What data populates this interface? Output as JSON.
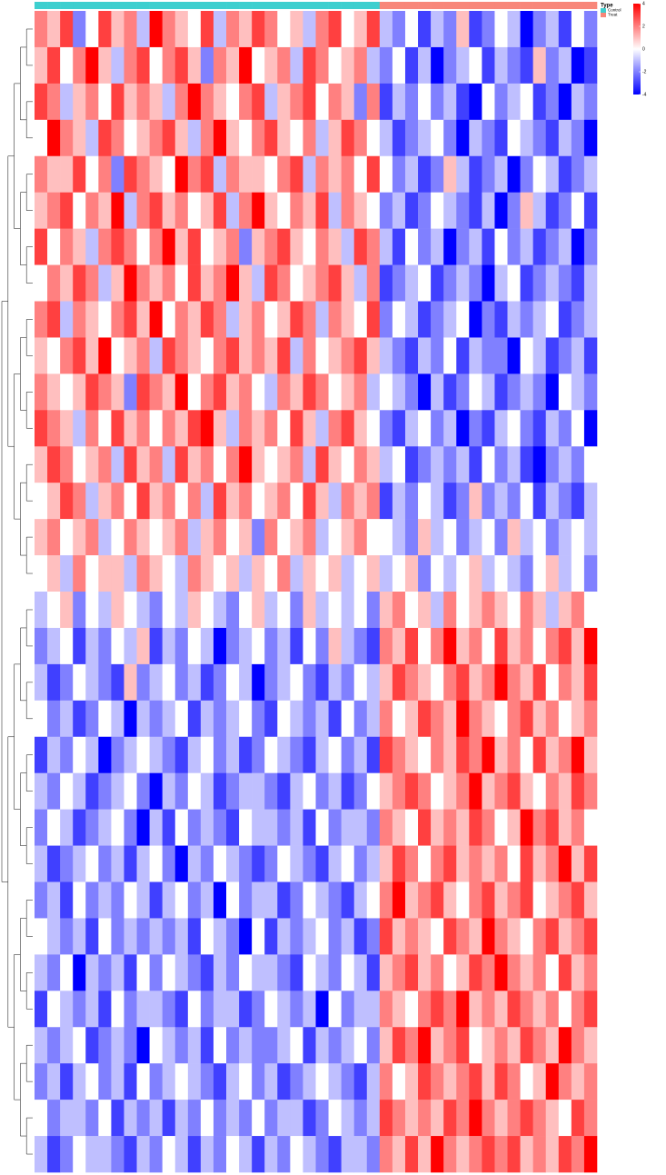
{
  "chart_data": {
    "type": "heatmap",
    "legend_title": "Type",
    "types": [
      "Control",
      "Treat"
    ],
    "type_colors": [
      "#3ecfcf",
      "#f8877a"
    ],
    "column_type": [
      0,
      0,
      0,
      0,
      0,
      0,
      0,
      0,
      0,
      0,
      0,
      0,
      0,
      0,
      0,
      0,
      0,
      0,
      0,
      0,
      0,
      0,
      0,
      0,
      0,
      0,
      0,
      1,
      1,
      1,
      1,
      1,
      1,
      1,
      1,
      1,
      1,
      1,
      1,
      1,
      1,
      1,
      1,
      1
    ],
    "zlim": [
      -4,
      4
    ],
    "zticks": [
      4,
      2,
      0,
      -2,
      -4
    ],
    "colors": [
      "#0000ff",
      "#ffffff",
      "#ff0000"
    ],
    "values": [
      [
        2,
        1,
        3,
        -2,
        0,
        3,
        1,
        2,
        -1,
        4,
        2,
        1,
        0,
        3,
        -1,
        2,
        1,
        3,
        2,
        0,
        1,
        -1,
        2,
        3,
        0,
        1,
        3,
        -1,
        -2,
        0,
        -3,
        -1,
        -2,
        1,
        -3,
        -2,
        0,
        -1,
        -4,
        -2,
        -1,
        -3,
        0,
        -2
      ],
      [
        1,
        3,
        0,
        2,
        4,
        1,
        -1,
        2,
        3,
        0,
        2,
        3,
        1,
        -2,
        2,
        1,
        4,
        0,
        1,
        2,
        -1,
        3,
        2,
        0,
        1,
        2,
        -1,
        -2,
        0,
        -3,
        -1,
        -4,
        -2,
        -1,
        0,
        -3,
        -1,
        -2,
        -3,
        1,
        -2,
        -1,
        -4,
        -3
      ],
      [
        3,
        2,
        -1,
        1,
        2,
        0,
        3,
        1,
        2,
        1,
        -1,
        2,
        4,
        2,
        1,
        0,
        2,
        3,
        -1,
        1,
        2,
        3,
        0,
        2,
        1,
        -2,
        2,
        -3,
        -1,
        -2,
        0,
        -2,
        -1,
        -3,
        -4,
        0,
        -2,
        -1,
        0,
        -3,
        -2,
        -4,
        -1,
        -2
      ],
      [
        0,
        4,
        2,
        1,
        -1,
        3,
        2,
        0,
        1,
        2,
        3,
        1,
        -1,
        2,
        4,
        1,
        0,
        2,
        3,
        1,
        0,
        2,
        -1,
        1,
        3,
        2,
        0,
        -1,
        -3,
        -2,
        -1,
        0,
        -2,
        -4,
        -1,
        -2,
        -3,
        0,
        -1,
        -2,
        -3,
        -1,
        -2,
        -4
      ],
      [
        2,
        1,
        1,
        3,
        0,
        2,
        -2,
        3,
        2,
        1,
        0,
        4,
        2,
        3,
        -1,
        2,
        1,
        1,
        0,
        2,
        3,
        -1,
        2,
        1,
        2,
        0,
        3,
        0,
        -2,
        -1,
        -3,
        -2,
        1,
        -1,
        -3,
        -2,
        -1,
        -4,
        -2,
        0,
        -1,
        -3,
        -2,
        -1
      ],
      [
        1,
        2,
        3,
        0,
        2,
        1,
        4,
        -1,
        2,
        3,
        1,
        2,
        0,
        1,
        3,
        -1,
        2,
        4,
        1,
        0,
        2,
        1,
        3,
        -1,
        2,
        1,
        0,
        -2,
        -1,
        -3,
        -2,
        0,
        -1,
        -2,
        -3,
        -1,
        -4,
        -2,
        1,
        -1,
        -3,
        -2,
        0,
        -3
      ],
      [
        3,
        0,
        2,
        1,
        -1,
        2,
        3,
        2,
        0,
        2,
        4,
        1,
        3,
        0,
        1,
        2,
        -2,
        1,
        2,
        3,
        1,
        0,
        2,
        1,
        -1,
        3,
        2,
        -1,
        -3,
        0,
        -2,
        -1,
        -4,
        -2,
        -1,
        -3,
        0,
        -2,
        -1,
        -3,
        -2,
        -1,
        -4,
        -2
      ],
      [
        0,
        2,
        1,
        3,
        2,
        -1,
        1,
        4,
        2,
        1,
        2,
        0,
        3,
        1,
        2,
        4,
        1,
        -1,
        3,
        2,
        0,
        1,
        2,
        3,
        1,
        -1,
        2,
        -3,
        -2,
        -1,
        0,
        -3,
        -2,
        -1,
        -2,
        -4,
        -1,
        0,
        -3,
        -2,
        -1,
        -2,
        -3,
        -1
      ],
      [
        2,
        3,
        -1,
        2,
        1,
        0,
        2,
        3,
        1,
        4,
        0,
        2,
        1,
        3,
        2,
        -1,
        1,
        2,
        0,
        1,
        3,
        2,
        -1,
        2,
        1,
        0,
        3,
        -2,
        0,
        -1,
        -3,
        -2,
        -1,
        0,
        -4,
        -2,
        -3,
        -1,
        -2,
        -1,
        0,
        -3,
        -2,
        -1
      ],
      [
        1,
        0,
        2,
        3,
        1,
        4,
        0,
        1,
        2,
        -1,
        3,
        2,
        1,
        0,
        2,
        3,
        1,
        2,
        1,
        3,
        -1,
        2,
        0,
        1,
        2,
        3,
        1,
        -1,
        -2,
        -3,
        -1,
        -2,
        0,
        -3,
        -1,
        -2,
        -2,
        -4,
        0,
        -1,
        -3,
        -2,
        -1,
        -3
      ],
      [
        2,
        1,
        0,
        1,
        3,
        2,
        1,
        -2,
        3,
        2,
        1,
        4,
        0,
        2,
        3,
        1,
        2,
        0,
        -1,
        2,
        1,
        3,
        2,
        0,
        1,
        2,
        -1,
        0,
        -1,
        -2,
        -4,
        -1,
        -3,
        -2,
        0,
        -1,
        -3,
        -2,
        -1,
        -2,
        -4,
        0,
        -1,
        -2
      ],
      [
        3,
        2,
        1,
        -1,
        2,
        0,
        3,
        1,
        2,
        0,
        2,
        1,
        3,
        4,
        1,
        -1,
        2,
        1,
        2,
        0,
        3,
        1,
        -1,
        2,
        3,
        1,
        0,
        -2,
        -3,
        -1,
        0,
        -2,
        -1,
        -4,
        -2,
        -3,
        -1,
        0,
        -2,
        -3,
        -1,
        -2,
        0,
        -4
      ],
      [
        1,
        3,
        2,
        0,
        1,
        2,
        -1,
        3,
        1,
        2,
        -1,
        3,
        1,
        2,
        0,
        2,
        4,
        1,
        0,
        1,
        2,
        -1,
        3,
        1,
        0,
        2,
        1,
        -1,
        0,
        -3,
        -2,
        -1,
        -2,
        -1,
        -3,
        0,
        -2,
        -1,
        -3,
        -4,
        -2,
        -1,
        -2,
        0
      ],
      [
        0,
        1,
        3,
        2,
        -1,
        1,
        2,
        0,
        3,
        1,
        2,
        0,
        2,
        -1,
        3,
        1,
        2,
        0,
        1,
        2,
        0,
        3,
        1,
        -1,
        2,
        1,
        2,
        -3,
        -1,
        -2,
        0,
        -1,
        -3,
        -2,
        1,
        -2,
        -1,
        -2,
        0,
        -3,
        -1,
        -2,
        -3,
        -1
      ],
      [
        1,
        2,
        0,
        1,
        2,
        -1,
        0,
        2,
        1,
        0,
        1,
        2,
        -1,
        1,
        2,
        0,
        1,
        -2,
        2,
        0,
        1,
        2,
        -1,
        0,
        1,
        2,
        0,
        0,
        -1,
        -2,
        1,
        -1,
        0,
        -2,
        -1,
        0,
        -2,
        1,
        -1,
        0,
        -2,
        -1,
        0,
        -1
      ],
      [
        0,
        1,
        -1,
        2,
        0,
        1,
        1,
        -1,
        2,
        1,
        0,
        -1,
        2,
        1,
        0,
        1,
        -1,
        1,
        0,
        2,
        -1,
        1,
        0,
        1,
        -1,
        0,
        1,
        -1,
        0,
        1,
        -2,
        0,
        -1,
        0,
        1,
        -1,
        0,
        -1,
        -2,
        0,
        1,
        -1,
        0,
        -2
      ],
      [
        -1,
        0,
        1,
        -2,
        0,
        -1,
        1,
        0,
        -1,
        -2,
        0,
        -1,
        1,
        0,
        -1,
        -2,
        0,
        1,
        -1,
        0,
        -2,
        1,
        -1,
        0,
        -1,
        0,
        -2,
        1,
        2,
        0,
        1,
        -1,
        2,
        0,
        1,
        2,
        1,
        0,
        2,
        1,
        -1,
        1,
        2,
        0
      ],
      [
        -2,
        -1,
        0,
        -3,
        -1,
        -2,
        0,
        -1,
        1,
        -3,
        -1,
        -2,
        0,
        -1,
        -4,
        -2,
        -1,
        0,
        -2,
        -1,
        -3,
        0,
        -2,
        1,
        -1,
        -2,
        -3,
        2,
        1,
        3,
        0,
        2,
        4,
        1,
        2,
        0,
        3,
        1,
        2,
        0,
        2,
        3,
        1,
        4
      ],
      [
        -1,
        -3,
        -2,
        0,
        -1,
        -2,
        -3,
        1,
        -2,
        -1,
        0,
        -2,
        -1,
        -3,
        -2,
        0,
        -1,
        -4,
        -2,
        -1,
        0,
        -2,
        -3,
        -1,
        -2,
        0,
        -1,
        1,
        3,
        2,
        1,
        0,
        2,
        3,
        1,
        2,
        4,
        2,
        1,
        3,
        0,
        2,
        1,
        3
      ],
      [
        0,
        -2,
        -1,
        -3,
        -2,
        0,
        -1,
        -4,
        -1,
        -2,
        -1,
        0,
        -3,
        -1,
        -2,
        -1,
        0,
        -2,
        -3,
        0,
        -1,
        -2,
        -1,
        -3,
        0,
        -2,
        -1,
        2,
        0,
        1,
        3,
        2,
        1,
        4,
        2,
        1,
        0,
        2,
        3,
        1,
        2,
        0,
        1,
        2
      ],
      [
        -3,
        -1,
        -2,
        0,
        -1,
        -4,
        -2,
        -1,
        0,
        -1,
        -2,
        -3,
        -1,
        0,
        -2,
        -1,
        -3,
        -2,
        0,
        -1,
        -2,
        -3,
        -1,
        0,
        -2,
        -1,
        -3,
        3,
        2,
        1,
        0,
        2,
        1,
        3,
        2,
        4,
        1,
        2,
        0,
        3,
        1,
        2,
        4,
        1
      ],
      [
        -1,
        -2,
        0,
        -1,
        -3,
        -2,
        -1,
        0,
        -2,
        -4,
        -1,
        -2,
        0,
        -1,
        -3,
        -2,
        -1,
        -1,
        -2,
        -3,
        -1,
        0,
        -2,
        -1,
        -3,
        -2,
        0,
        1,
        2,
        3,
        2,
        0,
        1,
        2,
        4,
        1,
        2,
        3,
        1,
        0,
        2,
        1,
        3,
        2
      ],
      [
        -2,
        0,
        -1,
        -3,
        -2,
        -1,
        0,
        -2,
        -4,
        -1,
        -3,
        0,
        -2,
        -1,
        -2,
        -3,
        0,
        -1,
        -1,
        -2,
        -1,
        -3,
        0,
        -2,
        -1,
        -1,
        -2,
        2,
        1,
        0,
        3,
        1,
        2,
        1,
        3,
        2,
        0,
        1,
        4,
        2,
        3,
        1,
        2,
        0
      ],
      [
        -1,
        -3,
        -2,
        -1,
        0,
        -2,
        -1,
        -3,
        -1,
        0,
        -2,
        -4,
        -1,
        -2,
        0,
        -1,
        -2,
        -3,
        -2,
        0,
        -1,
        -2,
        -3,
        -1,
        0,
        -2,
        -1,
        1,
        3,
        2,
        0,
        2,
        3,
        1,
        2,
        1,
        2,
        0,
        3,
        1,
        2,
        4,
        1,
        3
      ],
      [
        -2,
        -1,
        -3,
        0,
        -2,
        -1,
        -2,
        0,
        -1,
        -3,
        -1,
        0,
        -2,
        -1,
        -4,
        0,
        -2,
        -1,
        -1,
        -3,
        -2,
        0,
        -1,
        -2,
        -3,
        -1,
        0,
        2,
        4,
        1,
        2,
        3,
        1,
        0,
        2,
        3,
        1,
        2,
        3,
        0,
        1,
        2,
        3,
        1
      ],
      [
        0,
        -1,
        -2,
        -1,
        -3,
        0,
        -2,
        -1,
        -2,
        -1,
        -2,
        -1,
        -3,
        0,
        -1,
        -2,
        -4,
        0,
        -3,
        -1,
        -2,
        -1,
        0,
        -2,
        -1,
        -3,
        -2,
        3,
        1,
        2,
        1,
        0,
        3,
        2,
        1,
        4,
        2,
        1,
        0,
        2,
        3,
        1,
        2,
        3
      ],
      [
        -1,
        -2,
        0,
        -4,
        -1,
        -2,
        -1,
        -3,
        0,
        -2,
        0,
        -1,
        -2,
        -3,
        -1,
        -2,
        0,
        -1,
        -1,
        -2,
        -3,
        0,
        -1,
        -2,
        0,
        -1,
        -3,
        1,
        2,
        3,
        1,
        2,
        0,
        1,
        3,
        2,
        4,
        2,
        1,
        2,
        0,
        3,
        1,
        2
      ],
      [
        -3,
        0,
        -1,
        -2,
        -1,
        -3,
        0,
        -2,
        -1,
        -1,
        -2,
        -3,
        0,
        -2,
        -1,
        -1,
        -3,
        -2,
        0,
        -1,
        -2,
        -1,
        -4,
        0,
        -2,
        -1,
        -1,
        2,
        1,
        0,
        2,
        3,
        2,
        4,
        1,
        2,
        1,
        3,
        2,
        1,
        2,
        0,
        2,
        3
      ],
      [
        -1,
        -2,
        -1,
        0,
        -3,
        -2,
        -1,
        -2,
        -4,
        0,
        -1,
        -2,
        -1,
        -3,
        0,
        -2,
        -1,
        -2,
        -2,
        -1,
        0,
        -3,
        -1,
        -2,
        -1,
        0,
        -2,
        1,
        3,
        2,
        4,
        1,
        2,
        3,
        0,
        1,
        2,
        1,
        3,
        2,
        1,
        4,
        2,
        1
      ],
      [
        -2,
        -1,
        -3,
        -1,
        0,
        -2,
        -1,
        -3,
        0,
        -2,
        -1,
        0,
        -1,
        -2,
        -3,
        -1,
        0,
        -2,
        -1,
        -3,
        -2,
        -1,
        0,
        -1,
        -2,
        -3,
        -1,
        2,
        0,
        1,
        3,
        2,
        1,
        2,
        3,
        1,
        3,
        2,
        0,
        1,
        4,
        2,
        1,
        2
      ],
      [
        0,
        -2,
        -1,
        -1,
        -2,
        0,
        -3,
        -1,
        -2,
        -1,
        -3,
        -1,
        -2,
        0,
        -2,
        -1,
        -2,
        0,
        -2,
        -1,
        -1,
        -3,
        -2,
        0,
        -1,
        -2,
        -1,
        3,
        2,
        1,
        2,
        1,
        3,
        2,
        4,
        2,
        1,
        2,
        3,
        2,
        1,
        0,
        3,
        2
      ],
      [
        -1,
        -3,
        -2,
        0,
        -1,
        -1,
        -2,
        -3,
        -1,
        -2,
        0,
        -1,
        -3,
        -1,
        -2,
        0,
        -1,
        -3,
        -1,
        -2,
        0,
        -1,
        -2,
        -3,
        -1,
        -1,
        -2,
        2,
        1,
        3,
        1,
        4,
        2,
        1,
        2,
        3,
        2,
        3,
        1,
        2,
        1,
        3,
        2,
        4
      ]
    ]
  }
}
